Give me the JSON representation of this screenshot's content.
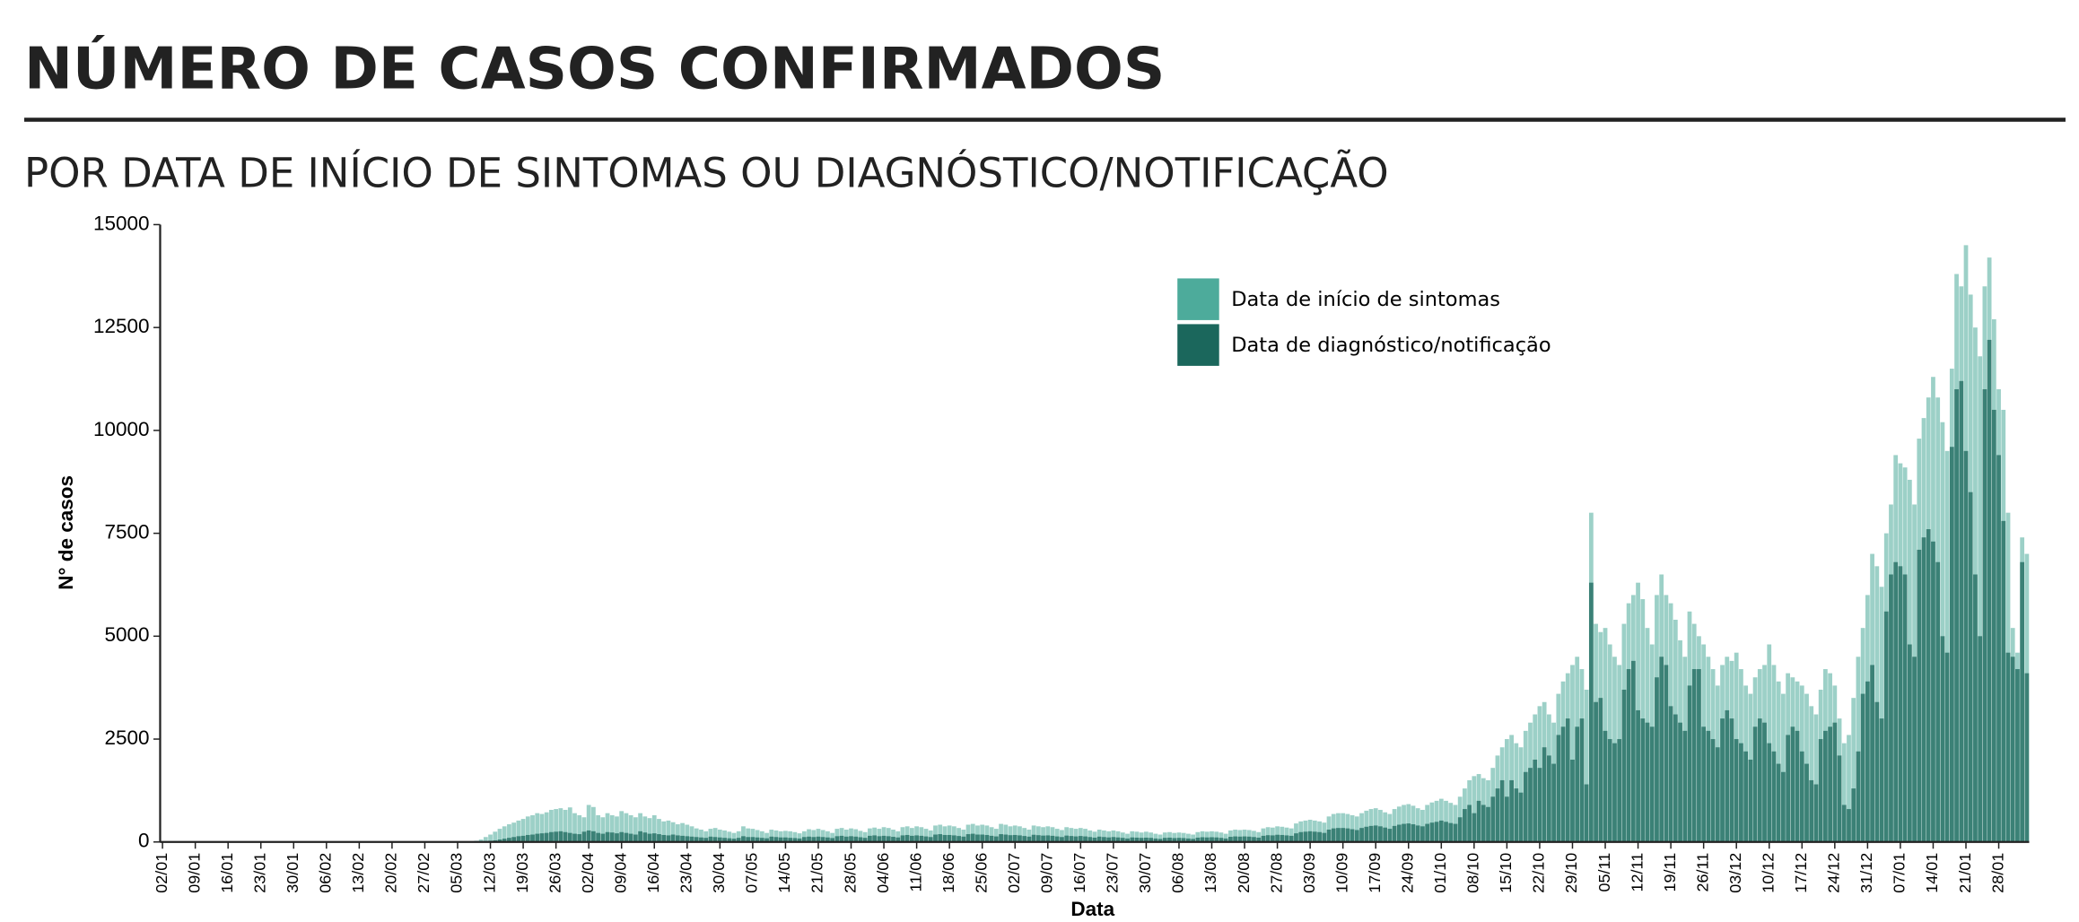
{
  "chart_data": {
    "type": "bar",
    "title": "NÚMERO DE CASOS CONFIRMADOS",
    "subtitle": "POR DATA DE INÍCIO DE SINTOMAS OU DIAGNÓSTICO/NOTIFICAÇÃO",
    "x_label": "Data",
    "y_label": "N° de casos",
    "legend_position": "top-right",
    "ylim": [
      0,
      15000
    ],
    "yticks": [
      0,
      2500,
      5000,
      7500,
      10000,
      12500,
      15000
    ],
    "categories": [
      "02/01",
      null,
      null,
      null,
      null,
      null,
      null,
      "09/01",
      null,
      null,
      null,
      null,
      null,
      null,
      "16/01",
      null,
      null,
      null,
      null,
      null,
      null,
      "23/01",
      null,
      null,
      null,
      null,
      null,
      null,
      "30/01",
      null,
      null,
      null,
      null,
      null,
      null,
      "06/02",
      null,
      null,
      null,
      null,
      null,
      null,
      "13/02",
      null,
      null,
      null,
      null,
      null,
      null,
      "20/02",
      null,
      null,
      null,
      null,
      null,
      null,
      "27/02",
      null,
      null,
      null,
      null,
      null,
      null,
      "05/03",
      null,
      null,
      null,
      null,
      null,
      null,
      "12/03",
      null,
      null,
      null,
      null,
      null,
      null,
      "19/03",
      null,
      null,
      null,
      null,
      null,
      null,
      "26/03",
      null,
      null,
      null,
      null,
      null,
      null,
      "02/04",
      null,
      null,
      null,
      null,
      null,
      null,
      "09/04",
      null,
      null,
      null,
      null,
      null,
      null,
      "16/04",
      null,
      null,
      null,
      null,
      null,
      null,
      "23/04",
      null,
      null,
      null,
      null,
      null,
      null,
      "30/04",
      null,
      null,
      null,
      null,
      null,
      null,
      "07/05",
      null,
      null,
      null,
      null,
      null,
      null,
      "14/05",
      null,
      null,
      null,
      null,
      null,
      null,
      "21/05",
      null,
      null,
      null,
      null,
      null,
      null,
      "28/05",
      null,
      null,
      null,
      null,
      null,
      null,
      "04/06",
      null,
      null,
      null,
      null,
      null,
      null,
      "11/06",
      null,
      null,
      null,
      null,
      null,
      null,
      "18/06",
      null,
      null,
      null,
      null,
      null,
      null,
      "25/06",
      null,
      null,
      null,
      null,
      null,
      null,
      "02/07",
      null,
      null,
      null,
      null,
      null,
      null,
      "09/07",
      null,
      null,
      null,
      null,
      null,
      null,
      "16/07",
      null,
      null,
      null,
      null,
      null,
      null,
      "23/07",
      null,
      null,
      null,
      null,
      null,
      null,
      "30/07",
      null,
      null,
      null,
      null,
      null,
      null,
      "06/08",
      null,
      null,
      null,
      null,
      null,
      null,
      "13/08",
      null,
      null,
      null,
      null,
      null,
      null,
      "20/08",
      null,
      null,
      null,
      null,
      null,
      null,
      "27/08",
      null,
      null,
      null,
      null,
      null,
      null,
      "03/09",
      null,
      null,
      null,
      null,
      null,
      null,
      "10/09",
      null,
      null,
      null,
      null,
      null,
      null,
      "17/09",
      null,
      null,
      null,
      null,
      null,
      null,
      "24/09",
      null,
      null,
      null,
      null,
      null,
      null,
      "01/10",
      null,
      null,
      null,
      null,
      null,
      null,
      "08/10",
      null,
      null,
      null,
      null,
      null,
      null,
      "15/10",
      null,
      null,
      null,
      null,
      null,
      null,
      "22/10",
      null,
      null,
      null,
      null,
      null,
      null,
      "29/10",
      null,
      null,
      null,
      null,
      null,
      null,
      "05/11",
      null,
      null,
      null,
      null,
      null,
      null,
      "12/11",
      null,
      null,
      null,
      null,
      null,
      null,
      "19/11",
      null,
      null,
      null,
      null,
      null,
      null,
      "26/11",
      null,
      null,
      null,
      null,
      null,
      null,
      "03/12",
      null,
      null,
      null,
      null,
      null,
      null,
      "10/12",
      null,
      null,
      null,
      null,
      null,
      null,
      "17/12",
      null,
      null,
      null,
      null,
      null,
      null,
      "24/12",
      null,
      null,
      null,
      null,
      null,
      null,
      "31/12",
      null,
      null,
      null,
      null,
      null,
      null,
      "07/01",
      null,
      null,
      null,
      null,
      null,
      null,
      "14/01",
      null,
      null,
      null,
      null,
      null,
      null,
      "21/01",
      null,
      null,
      null,
      null,
      null,
      null,
      "28/01",
      null,
      null,
      null,
      null,
      null,
      null
    ],
    "series": [
      {
        "name": "Data de início de sintomas",
        "color": "#4dab9b",
        "values": [
          0,
          0,
          0,
          0,
          0,
          0,
          0,
          0,
          0,
          0,
          0,
          0,
          0,
          0,
          0,
          0,
          0,
          0,
          0,
          0,
          0,
          0,
          0,
          0,
          0,
          0,
          0,
          0,
          0,
          0,
          0,
          0,
          0,
          0,
          0,
          0,
          0,
          0,
          0,
          0,
          0,
          0,
          0,
          0,
          0,
          0,
          0,
          0,
          0,
          0,
          0,
          0,
          0,
          0,
          0,
          0,
          0,
          0,
          0,
          0,
          0,
          0,
          0,
          0,
          0,
          0,
          10,
          30,
          60,
          120,
          180,
          250,
          320,
          380,
          430,
          470,
          520,
          560,
          620,
          650,
          700,
          680,
          720,
          780,
          800,
          820,
          780,
          840,
          700,
          650,
          600,
          900,
          850,
          650,
          600,
          700,
          650,
          620,
          750,
          700,
          650,
          600,
          700,
          620,
          580,
          650,
          560,
          500,
          520,
          480,
          430,
          460,
          420,
          380,
          330,
          300,
          260,
          320,
          340,
          300,
          280,
          250,
          220,
          260,
          380,
          330,
          320,
          290,
          260,
          220,
          300,
          280,
          260,
          270,
          260,
          240,
          210,
          260,
          310,
          290,
          320,
          290,
          260,
          220,
          320,
          340,
          300,
          330,
          310,
          270,
          240,
          330,
          350,
          320,
          360,
          340,
          300,
          260,
          360,
          380,
          340,
          380,
          360,
          320,
          280,
          400,
          420,
          380,
          400,
          380,
          340,
          300,
          420,
          440,
          400,
          420,
          400,
          360,
          320,
          440,
          420,
          380,
          400,
          380,
          340,
          300,
          400,
          380,
          360,
          380,
          360,
          320,
          290,
          360,
          340,
          320,
          340,
          320,
          280,
          250,
          300,
          280,
          260,
          280,
          260,
          230,
          200,
          260,
          250,
          230,
          250,
          230,
          200,
          180,
          230,
          240,
          220,
          230,
          220,
          200,
          180,
          240,
          260,
          250,
          260,
          250,
          230,
          200,
          280,
          300,
          290,
          300,
          290,
          270,
          240,
          330,
          360,
          350,
          380,
          370,
          350,
          330,
          450,
          500,
          520,
          540,
          520,
          500,
          470,
          620,
          680,
          700,
          700,
          680,
          650,
          620,
          700,
          760,
          800,
          820,
          780,
          720,
          680,
          800,
          860,
          900,
          920,
          880,
          820,
          780,
          900,
          960,
          1000,
          1050,
          1000,
          950,
          900,
          1100,
          1300,
          1500,
          1600,
          1650,
          1550,
          1500,
          1800,
          2100,
          2300,
          2500,
          2600,
          2400,
          2300,
          2700,
          2900,
          3100,
          3300,
          3400,
          3100,
          2900,
          3600,
          3900,
          4100,
          4300,
          4500,
          4200,
          3700,
          8000,
          5300,
          5100,
          5200,
          4800,
          4500,
          4300,
          5300,
          5800,
          6000,
          6300,
          5900,
          5200,
          4800,
          6000,
          6500,
          6000,
          5800,
          5400,
          4900,
          4500,
          5600,
          5300,
          5000,
          4800,
          4500,
          4200,
          3800,
          4300,
          4500,
          4400,
          4600,
          4200,
          3800,
          3600,
          4000,
          4200,
          4300,
          4800,
          4300,
          3900,
          3600,
          4100,
          4000,
          3900,
          3800,
          3600,
          3300,
          3100,
          3700,
          4200,
          4100,
          3800,
          3000,
          2400,
          2600,
          3500,
          4500,
          5200,
          6000,
          7000,
          6700,
          6200,
          7500,
          8200,
          9400,
          9200,
          9100,
          8800,
          8200,
          9800,
          10300,
          10800,
          11300,
          10800,
          10200,
          9500,
          11500,
          13800,
          13500,
          14500,
          13300,
          12500,
          11800,
          13500,
          14200,
          12700,
          11000,
          10500,
          8000,
          5200,
          4600,
          7400,
          7000
        ]
      },
      {
        "name": "Data de diagnóstico/notificação",
        "color": "#1b675c",
        "values": [
          0,
          0,
          0,
          0,
          0,
          0,
          0,
          0,
          0,
          0,
          0,
          0,
          0,
          0,
          0,
          0,
          0,
          0,
          0,
          0,
          0,
          0,
          0,
          0,
          0,
          0,
          0,
          0,
          0,
          0,
          0,
          0,
          0,
          0,
          0,
          0,
          0,
          0,
          0,
          0,
          0,
          0,
          0,
          0,
          0,
          0,
          0,
          0,
          0,
          0,
          0,
          0,
          0,
          0,
          0,
          0,
          0,
          0,
          0,
          0,
          0,
          0,
          0,
          0,
          0,
          0,
          0,
          5,
          10,
          20,
          30,
          40,
          60,
          80,
          100,
          120,
          140,
          150,
          170,
          180,
          200,
          210,
          220,
          240,
          250,
          260,
          240,
          220,
          200,
          190,
          250,
          280,
          260,
          220,
          200,
          240,
          230,
          210,
          240,
          220,
          200,
          180,
          260,
          230,
          200,
          210,
          190,
          170,
          160,
          180,
          160,
          150,
          140,
          130,
          120,
          110,
          100,
          130,
          120,
          110,
          100,
          90,
          80,
          100,
          140,
          120,
          120,
          110,
          100,
          90,
          130,
          120,
          110,
          110,
          100,
          95,
          85,
          120,
          130,
          120,
          130,
          120,
          110,
          95,
          140,
          150,
          130,
          140,
          130,
          115,
          100,
          150,
          160,
          140,
          150,
          140,
          125,
          110,
          160,
          170,
          150,
          160,
          150,
          135,
          120,
          180,
          190,
          170,
          170,
          160,
          145,
          130,
          190,
          200,
          180,
          180,
          170,
          150,
          135,
          190,
          180,
          165,
          170,
          160,
          145,
          130,
          175,
          165,
          155,
          160,
          150,
          135,
          120,
          155,
          145,
          135,
          145,
          135,
          120,
          105,
          130,
          120,
          110,
          120,
          110,
          100,
          85,
          110,
          105,
          100,
          105,
          100,
          85,
          75,
          100,
          105,
          95,
          100,
          95,
          85,
          75,
          105,
          115,
          110,
          115,
          110,
          100,
          85,
          125,
          135,
          130,
          135,
          130,
          120,
          105,
          150,
          165,
          160,
          175,
          170,
          160,
          150,
          210,
          240,
          250,
          260,
          250,
          240,
          220,
          300,
          330,
          340,
          340,
          330,
          310,
          290,
          340,
          370,
          390,
          400,
          380,
          350,
          320,
          390,
          420,
          440,
          450,
          430,
          400,
          380,
          440,
          470,
          490,
          520,
          490,
          460,
          440,
          600,
          800,
          900,
          700,
          1000,
          900,
          850,
          1100,
          1300,
          1500,
          1100,
          1500,
          1300,
          1200,
          1700,
          1800,
          2000,
          1800,
          2300,
          2100,
          1900,
          2600,
          2800,
          3000,
          2000,
          2800,
          3000,
          1400,
          6300,
          3400,
          3500,
          2700,
          2500,
          2400,
          2500,
          3700,
          4200,
          4400,
          3200,
          3000,
          2900,
          2800,
          4000,
          4500,
          4300,
          3300,
          3100,
          2900,
          2700,
          3800,
          4200,
          4200,
          2800,
          2700,
          2500,
          2300,
          3000,
          3200,
          3000,
          2500,
          2400,
          2200,
          2000,
          2800,
          3000,
          2900,
          2400,
          2200,
          1900,
          1700,
          2600,
          2800,
          2700,
          2200,
          1900,
          1500,
          1400,
          2500,
          2700,
          2800,
          2900,
          2100,
          900,
          800,
          1300,
          2200,
          3600,
          3900,
          4300,
          3400,
          3000,
          5600,
          6500,
          6800,
          6700,
          6500,
          4800,
          4500,
          7100,
          7400,
          7600,
          7300,
          6800,
          5000,
          4600,
          9600,
          11000,
          11200,
          9500,
          8500,
          6500,
          5000,
          11000,
          12200,
          10500,
          9400,
          7800,
          4600,
          4500,
          4200,
          6800,
          4100
        ]
      }
    ]
  }
}
